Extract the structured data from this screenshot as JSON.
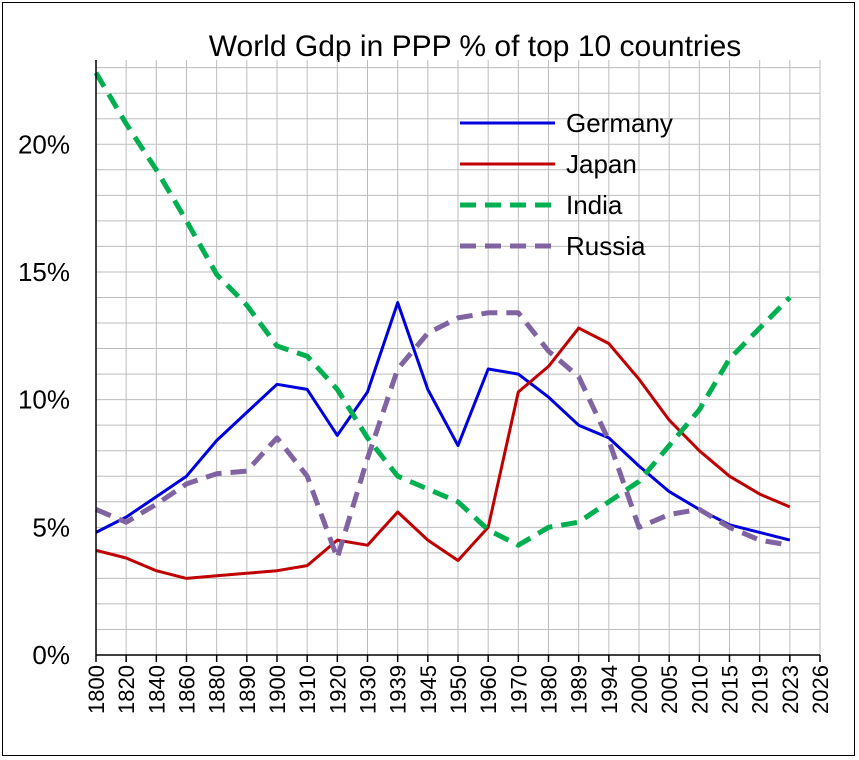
{
  "chart_data": {
    "type": "line",
    "title": "World Gdp in PPP % of top 10 countries",
    "xlabel": "",
    "ylabel": "",
    "categories": [
      "1800",
      "1820",
      "1840",
      "1860",
      "1880",
      "1890",
      "1900",
      "1910",
      "1920",
      "1930",
      "1939",
      "1945",
      "1950",
      "1960",
      "1970",
      "1980",
      "1989",
      "1994",
      "2000",
      "2005",
      "2010",
      "2015",
      "2019",
      "2023",
      "2026"
    ],
    "y_ticks": [
      "0%",
      "5%",
      "10%",
      "15%",
      "20%"
    ],
    "y_tick_values": [
      0,
      5,
      10,
      15,
      20
    ],
    "ylim": [
      0,
      23.3
    ],
    "grid": true,
    "legend_position": "top-right",
    "series": [
      {
        "name": "Germany",
        "color": "#0000dd",
        "dash": "solid",
        "values": [
          4.8,
          5.4,
          6.2,
          7.0,
          8.4,
          9.5,
          10.6,
          10.4,
          8.6,
          10.3,
          13.8,
          10.4,
          8.2,
          11.2,
          11.0,
          10.1,
          9.0,
          8.5,
          7.4,
          6.4,
          5.7,
          5.1,
          4.8,
          4.5,
          null
        ]
      },
      {
        "name": "Japan",
        "color": "#c00000",
        "dash": "solid",
        "values": [
          4.1,
          3.8,
          3.3,
          3.0,
          3.1,
          3.2,
          3.3,
          3.5,
          4.5,
          4.3,
          5.6,
          4.5,
          3.7,
          5.0,
          10.3,
          11.3,
          12.8,
          12.2,
          10.8,
          9.2,
          8.0,
          7.0,
          6.3,
          5.8,
          null
        ]
      },
      {
        "name": "India",
        "color": "#00b050",
        "dash": "dashed",
        "values": [
          22.8,
          20.8,
          19.0,
          17.0,
          14.9,
          13.7,
          12.1,
          11.7,
          10.4,
          8.5,
          7.0,
          6.5,
          6.0,
          4.9,
          4.3,
          5.0,
          5.2,
          6.0,
          6.8,
          8.2,
          9.6,
          11.6,
          12.8,
          14.0,
          null
        ]
      },
      {
        "name": "Russia",
        "color": "#8064a2",
        "dash": "dashed",
        "values": [
          5.7,
          5.2,
          5.9,
          6.7,
          7.1,
          7.2,
          8.5,
          7.0,
          3.8,
          7.7,
          11.2,
          12.6,
          13.2,
          13.4,
          13.4,
          11.9,
          10.9,
          8.4,
          5.0,
          5.5,
          5.7,
          5.0,
          4.5,
          4.3,
          null
        ]
      }
    ]
  }
}
